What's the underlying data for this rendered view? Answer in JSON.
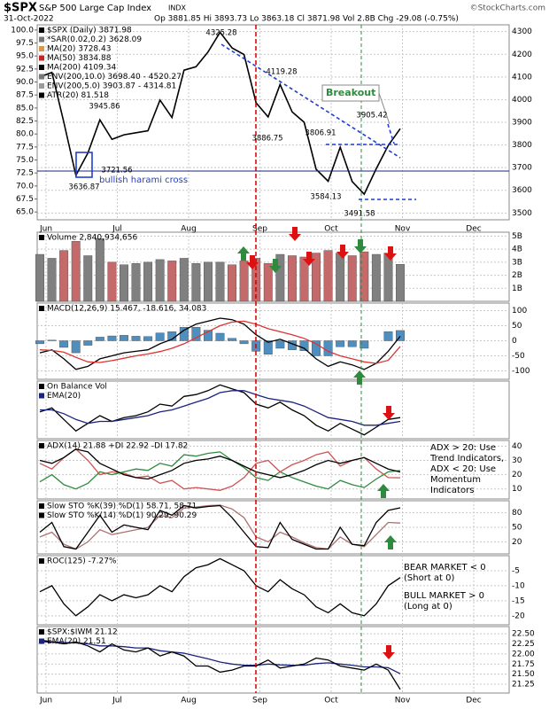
{
  "header": {
    "symbol": "$SPX",
    "name": "S&P 500 Large Cap Index",
    "exchange": "INDX",
    "credit": "©StockCharts.com",
    "date": "31-Oct-2022",
    "quote": "Op 3881.85 Hi 3893.73 Lo 3863.18 Cl 3871.98 Vol 2.8B Chg -29.08 (-0.75%)"
  },
  "x_axis": {
    "categories": [
      "Jun",
      "Jul",
      "Aug",
      "Sep",
      "Oct",
      "Nov",
      "Dec"
    ]
  },
  "annotations": {
    "price_labels": [
      "4325.28",
      "4119.28",
      "3945.86",
      "3886.75",
      "3806.91",
      "3905.42",
      "3721.56",
      "3636.87",
      "3584.13",
      "3491.58"
    ],
    "pattern": "bullish harami cross",
    "breakout": "Breakout"
  },
  "chart_data": [
    {
      "type": "line",
      "ylim": [
        3470,
        4330
      ],
      "yticks": [
        3500,
        3600,
        3700,
        3800,
        3900,
        4000,
        4100,
        4200,
        4300
      ],
      "y2lim": [
        63.5,
        101
      ],
      "y2ticks": [
        {
          "value": 100,
          "label": "100.0"
        },
        97.5,
        {
          "value": 95,
          "label": "95.0"
        },
        92.5,
        {
          "value": 90,
          "label": "90.0"
        },
        87.5,
        {
          "value": 85,
          "label": "85.0"
        },
        82.5,
        {
          "value": 80,
          "label": "80.0"
        },
        77.5,
        {
          "value": 75,
          "label": "75.0"
        },
        72.5,
        {
          "value": 70,
          "label": "70.0"
        },
        67.5,
        {
          "value": 65,
          "label": "65.0"
        }
      ],
      "grid": true,
      "legend": [
        {
          "text": "$SPX (Daily) 3871.98",
          "color": "#000000"
        },
        {
          "text": "*SAR(0.02,0.2) 3628.09",
          "color": "#777777"
        },
        {
          "text": "MA(20) 3728.43",
          "color": "#d89a4a"
        },
        {
          "text": "MA(50) 3834.88",
          "color": "#cc2222"
        },
        {
          "text": "MA(200) 4109.34",
          "color": "#000000"
        },
        {
          "text": "ENV(200,10.0) 3698.40 - 4520.27",
          "color": "#777777"
        },
        {
          "text": "ENV(200,5.0) 3903.87 - 4314.81",
          "color": "#999999"
        },
        {
          "text": "ATR(20) 81.518",
          "color": "#000000"
        }
      ],
      "series": [
        {
          "color": "#000000",
          "values": [
            4100,
            4120,
            3900,
            3666,
            3765,
            3911,
            3825,
            3845,
            3854,
            3863,
            3998,
            3921,
            4130,
            4145,
            4210,
            4297,
            4228,
            4199,
            3986,
            3924,
            4067,
            3946,
            3900,
            3693,
            3640,
            3790,
            3639,
            3583,
            3695,
            3797,
            3872
          ]
        }
      ]
    },
    {
      "type": "bar",
      "ylim": [
        0,
        5.3
      ],
      "yticks": [
        {
          "value": 1,
          "label": "1B"
        },
        {
          "value": 2,
          "label": "2B"
        },
        {
          "value": 3,
          "label": "3B"
        },
        {
          "value": 4,
          "label": "4B"
        },
        {
          "value": 5,
          "label": "5B"
        }
      ],
      "grid": true,
      "legend": [
        {
          "text": "Volume 2,840,934,656",
          "color": "#000000"
        }
      ],
      "series": [
        {
          "kind": "bar",
          "color": "#c46a6a",
          "values": [
            3.6,
            3.3,
            3.9,
            4.6,
            3.5,
            4.8,
            3.0,
            2.8,
            2.9,
            3.0,
            3.2,
            3.1,
            3.3,
            2.9,
            3.0,
            3.0,
            2.8,
            3.1,
            3.3,
            2.9,
            3.6,
            3.5,
            3.4,
            3.7,
            3.9,
            3.7,
            3.5,
            3.8,
            3.6,
            3.7,
            2.84
          ]
        }
      ]
    },
    {
      "type": "line",
      "ylim": [
        -128,
        125
      ],
      "yticks": [
        100,
        50,
        0,
        -50,
        -100
      ],
      "grid": true,
      "legend": [
        {
          "text": "MACD(12,26,9) 15.467, -18.616, 34.083",
          "color": "#000000"
        }
      ],
      "series": [
        {
          "kind": "bar",
          "color": "#4f8fc0",
          "values": [
            -10,
            2,
            -22,
            -40,
            -15,
            12,
            16,
            18,
            15,
            14,
            26,
            30,
            45,
            45,
            35,
            25,
            8,
            -10,
            -35,
            -45,
            -25,
            -30,
            -33,
            -50,
            -50,
            -20,
            -20,
            -25,
            0,
            30,
            34
          ]
        },
        {
          "color": "#000000",
          "values": [
            -40,
            -30,
            -60,
            -95,
            -85,
            -60,
            -50,
            -40,
            -35,
            -30,
            -10,
            5,
            35,
            55,
            65,
            75,
            70,
            55,
            20,
            -5,
            5,
            -10,
            -25,
            -60,
            -85,
            -70,
            -80,
            -95,
            -75,
            -35,
            15
          ]
        },
        {
          "color": "#dd3333",
          "values": [
            -30,
            -32,
            -38,
            -55,
            -70,
            -72,
            -66,
            -58,
            -50,
            -44,
            -36,
            -25,
            -10,
            10,
            30,
            50,
            62,
            65,
            55,
            40,
            30,
            20,
            8,
            -10,
            -35,
            -50,
            -60,
            -70,
            -75,
            -65,
            -19
          ]
        }
      ]
    },
    {
      "type": "line",
      "ylim": [
        -14,
        16
      ],
      "grid": false,
      "legend": [
        {
          "text": "On Balance Vol",
          "color": "#000000"
        },
        {
          "text": "EMA(20)",
          "color": "#1a237e"
        }
      ],
      "series": [
        {
          "color": "#000000",
          "values": [
            0,
            2,
            -4,
            -10,
            -6,
            -2,
            -5,
            -3,
            -2,
            0,
            4,
            3,
            8,
            9,
            11,
            14,
            12,
            10,
            4,
            2,
            5,
            1,
            -2,
            -7,
            -10,
            -6,
            -9,
            -12,
            -8,
            -4,
            -3
          ]
        },
        {
          "color": "#1a237e",
          "values": [
            1,
            1,
            -1,
            -4,
            -6,
            -5,
            -5,
            -4,
            -3,
            -2,
            0,
            1,
            3,
            5,
            7,
            10,
            11,
            11,
            9,
            7,
            6,
            5,
            3,
            0,
            -3,
            -4,
            -5,
            -7,
            -7,
            -6,
            -5
          ]
        }
      ]
    },
    {
      "type": "line",
      "ylim": [
        3,
        44
      ],
      "yticks": [
        40,
        30,
        20,
        10
      ],
      "grid": true,
      "legend": [
        {
          "text": "ADX(14) 21.88 +DI 22.92 -DI 17.82",
          "color": "#000000"
        }
      ],
      "notes": [
        {
          "text": "ADX > 20: Use",
          "color": "#000000"
        },
        {
          "text": "Trend Indicators,",
          "color": "#000000"
        },
        {
          "text": "ADX < 20: Use",
          "color": "#000000"
        },
        {
          "text": "Momentum",
          "color": "#000000"
        },
        {
          "text": "Indicators",
          "color": "#000000"
        }
      ],
      "series": [
        {
          "color": "#2e8b3e",
          "values": [
            15,
            20,
            13,
            10,
            14,
            22,
            20,
            22,
            24,
            23,
            28,
            26,
            34,
            33,
            35,
            36,
            30,
            25,
            18,
            16,
            22,
            18,
            15,
            12,
            10,
            16,
            13,
            11,
            17,
            22,
            22.92
          ]
        },
        {
          "color": "#cc5555",
          "values": [
            28,
            24,
            32,
            38,
            30,
            20,
            22,
            21,
            18,
            19,
            14,
            16,
            10,
            11,
            10,
            9,
            12,
            18,
            28,
            30,
            22,
            27,
            30,
            34,
            36,
            26,
            30,
            32,
            24,
            18,
            17.82
          ]
        },
        {
          "color": "#000000",
          "values": [
            30,
            28,
            32,
            38,
            36,
            28,
            24,
            20,
            18,
            17,
            20,
            23,
            28,
            30,
            31,
            33,
            30,
            26,
            22,
            20,
            18,
            20,
            23,
            27,
            30,
            28,
            30,
            32,
            28,
            24,
            21.88
          ]
        }
      ]
    },
    {
      "type": "line",
      "ylim": [
        -5,
        105
      ],
      "yticks": [
        80,
        50,
        20
      ],
      "grid": true,
      "legend": [
        {
          "text": "Slow STO %K(39) %D(1) 58.71, 58.71",
          "color": "#000000"
        },
        {
          "text": "Slow STO %K(14) %D(1) 90.29, 90.29",
          "color": "#000000"
        }
      ],
      "series": [
        {
          "color": "#b07070",
          "values": [
            30,
            40,
            15,
            5,
            20,
            45,
            35,
            40,
            45,
            50,
            75,
            70,
            90,
            92,
            95,
            96,
            88,
            70,
            30,
            20,
            40,
            30,
            18,
            8,
            5,
            30,
            15,
            10,
            35,
            60,
            58.71
          ]
        },
        {
          "color": "#000000",
          "values": [
            40,
            60,
            10,
            5,
            40,
            75,
            40,
            55,
            50,
            45,
            85,
            75,
            95,
            90,
            93,
            95,
            70,
            40,
            10,
            8,
            60,
            25,
            15,
            5,
            5,
            50,
            15,
            12,
            60,
            85,
            90.29
          ]
        }
      ]
    },
    {
      "type": "line",
      "ylim": [
        -23,
        0
      ],
      "yticks": [
        -5,
        -10,
        -15,
        -20
      ],
      "grid": true,
      "legend": [
        {
          "text": "ROC(125) -7.27%",
          "color": "#000000"
        }
      ],
      "notes": [
        {
          "text": "BEAR MARKET < 0",
          "color": "#dd2222"
        },
        {
          "text": "(Short at 0)",
          "color": "#dd2222"
        },
        {
          "text": "BULL MARKET > 0",
          "color": "#228822"
        },
        {
          "text": "(Long at 0)",
          "color": "#228822"
        }
      ],
      "series": [
        {
          "color": "#000000",
          "values": [
            -12,
            -10,
            -16,
            -20,
            -17,
            -13,
            -15,
            -13,
            -14,
            -13,
            -10,
            -12,
            -7,
            -4,
            -3,
            -1,
            -3,
            -5,
            -10,
            -12,
            -8,
            -11,
            -13,
            -17,
            -19,
            -16,
            -19,
            -20,
            -16,
            -10,
            -7.27
          ]
        }
      ]
    },
    {
      "type": "line",
      "ylim": [
        21.03,
        22.68
      ],
      "yticks": [
        {
          "value": 22.5,
          "label": "22.50"
        },
        22.25,
        {
          "value": 22,
          "label": "22.00"
        },
        21.75,
        {
          "value": 21.5,
          "label": "21.50"
        },
        21.25
      ],
      "grid": true,
      "legend": [
        {
          "text": "$SPX:$IWM 21.12",
          "color": "#000000"
        },
        {
          "text": "EMA(20) 21.51",
          "color": "#1a237e"
        }
      ],
      "series": [
        {
          "color": "#1a237e",
          "values": [
            22.3,
            22.3,
            22.28,
            22.28,
            22.25,
            22.2,
            22.2,
            22.18,
            22.15,
            22.15,
            22.08,
            22.05,
            22.02,
            21.95,
            21.88,
            21.8,
            21.75,
            21.72,
            21.72,
            21.75,
            21.73,
            21.72,
            21.72,
            21.76,
            21.78,
            21.75,
            21.72,
            21.68,
            21.68,
            21.66,
            21.51
          ]
        },
        {
          "color": "#000000",
          "values": [
            22.35,
            22.3,
            22.25,
            22.3,
            22.2,
            22.05,
            22.25,
            22.1,
            22.05,
            22.15,
            21.95,
            22.05,
            21.95,
            21.7,
            21.7,
            21.55,
            21.6,
            21.7,
            21.7,
            21.85,
            21.65,
            21.7,
            21.75,
            21.9,
            21.85,
            21.7,
            21.65,
            21.6,
            21.75,
            21.6,
            21.12
          ]
        }
      ]
    }
  ]
}
